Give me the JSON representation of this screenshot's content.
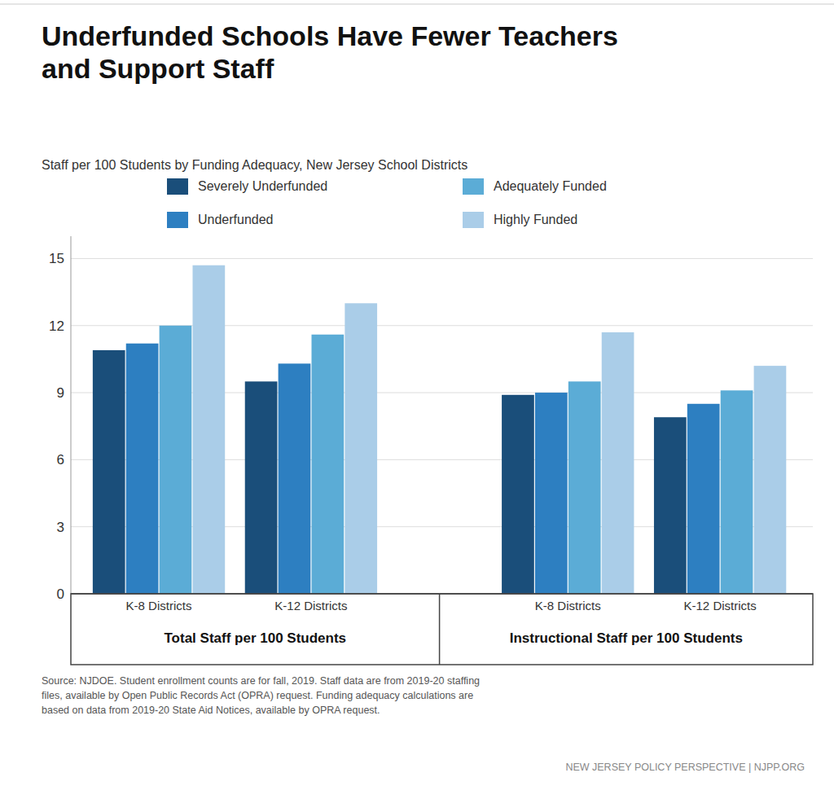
{
  "chart_data": {
    "type": "bar",
    "title": "Underfunded Schools Have Fewer Teachers\nand Support Staff",
    "subtitle": "Staff per 100 Students by Funding Adequacy, New Jersey School Districts",
    "categories": [
      "K-8 Districts",
      "K-12 Districts",
      "K-8 Districts",
      "K-12 Districts"
    ],
    "section_labels": [
      "Total Staff per 100 Students",
      "Instructional Staff per 100 Students"
    ],
    "series": [
      {
        "name": "Severely Underfunded",
        "color": "#1a4e7a",
        "values": [
          10.9,
          9.5,
          8.9,
          7.9
        ]
      },
      {
        "name": "Underfunded",
        "color": "#2d7fc1",
        "values": [
          11.2,
          10.3,
          9.0,
          8.5
        ]
      },
      {
        "name": "Adequately Funded",
        "color": "#5bacd6",
        "values": [
          12.0,
          11.6,
          9.5,
          9.1
        ]
      },
      {
        "name": "Highly Funded",
        "color": "#aacde8",
        "values": [
          14.7,
          13.0,
          11.7,
          10.2
        ]
      }
    ],
    "ylim": [
      0,
      16
    ],
    "yticks": [
      0,
      3,
      6,
      9,
      12,
      15
    ],
    "grid": true,
    "source": "Source: NJDOE. Student enrollment counts are for fall, 2019. Staff data are from 2019-20 staffing\nfiles, available by Open Public Records Act (OPRA) request. Funding adequacy calculations are\nbased on data from 2019-20 State Aid Notices, available by OPRA request.",
    "footer": "NEW JERSEY POLICY PERSPECTIVE | NJPP.ORG"
  }
}
